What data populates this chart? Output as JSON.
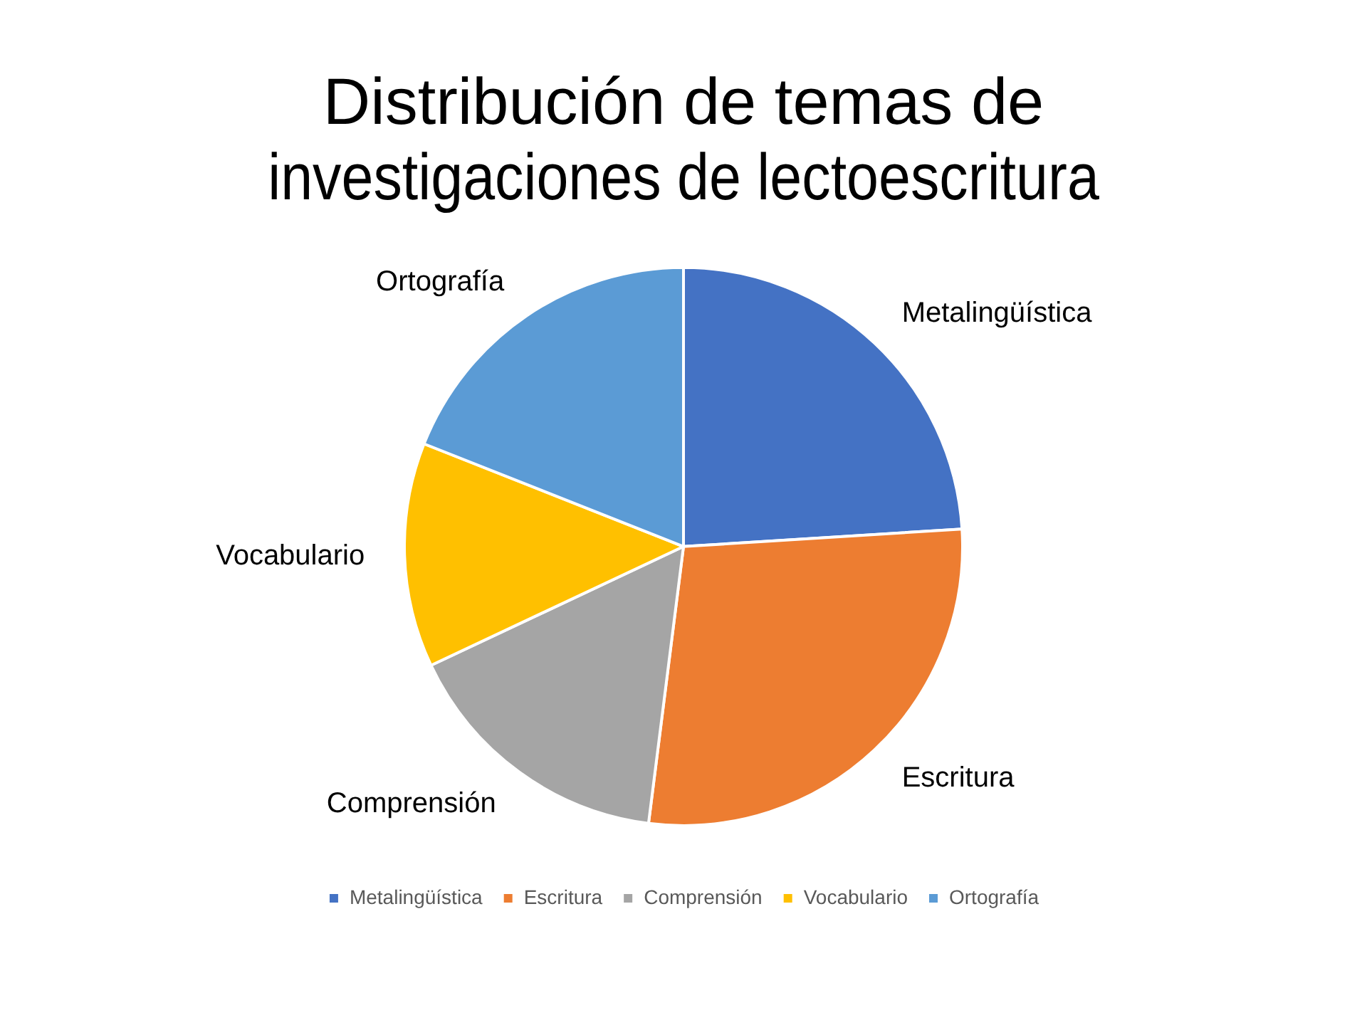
{
  "chart_data": {
    "type": "pie",
    "title": "Distribución de temas de investigaciones de lectoescritura",
    "categories": [
      "Metalingüística",
      "Escritura",
      "Comprensión",
      "Vocabulario",
      "Ortografía"
    ],
    "values": [
      24,
      28,
      16,
      13,
      19
    ],
    "colors": [
      "#4472c4",
      "#ed7d31",
      "#a5a5a5",
      "#ffc000",
      "#5b9bd5"
    ],
    "legend": "bottom"
  }
}
